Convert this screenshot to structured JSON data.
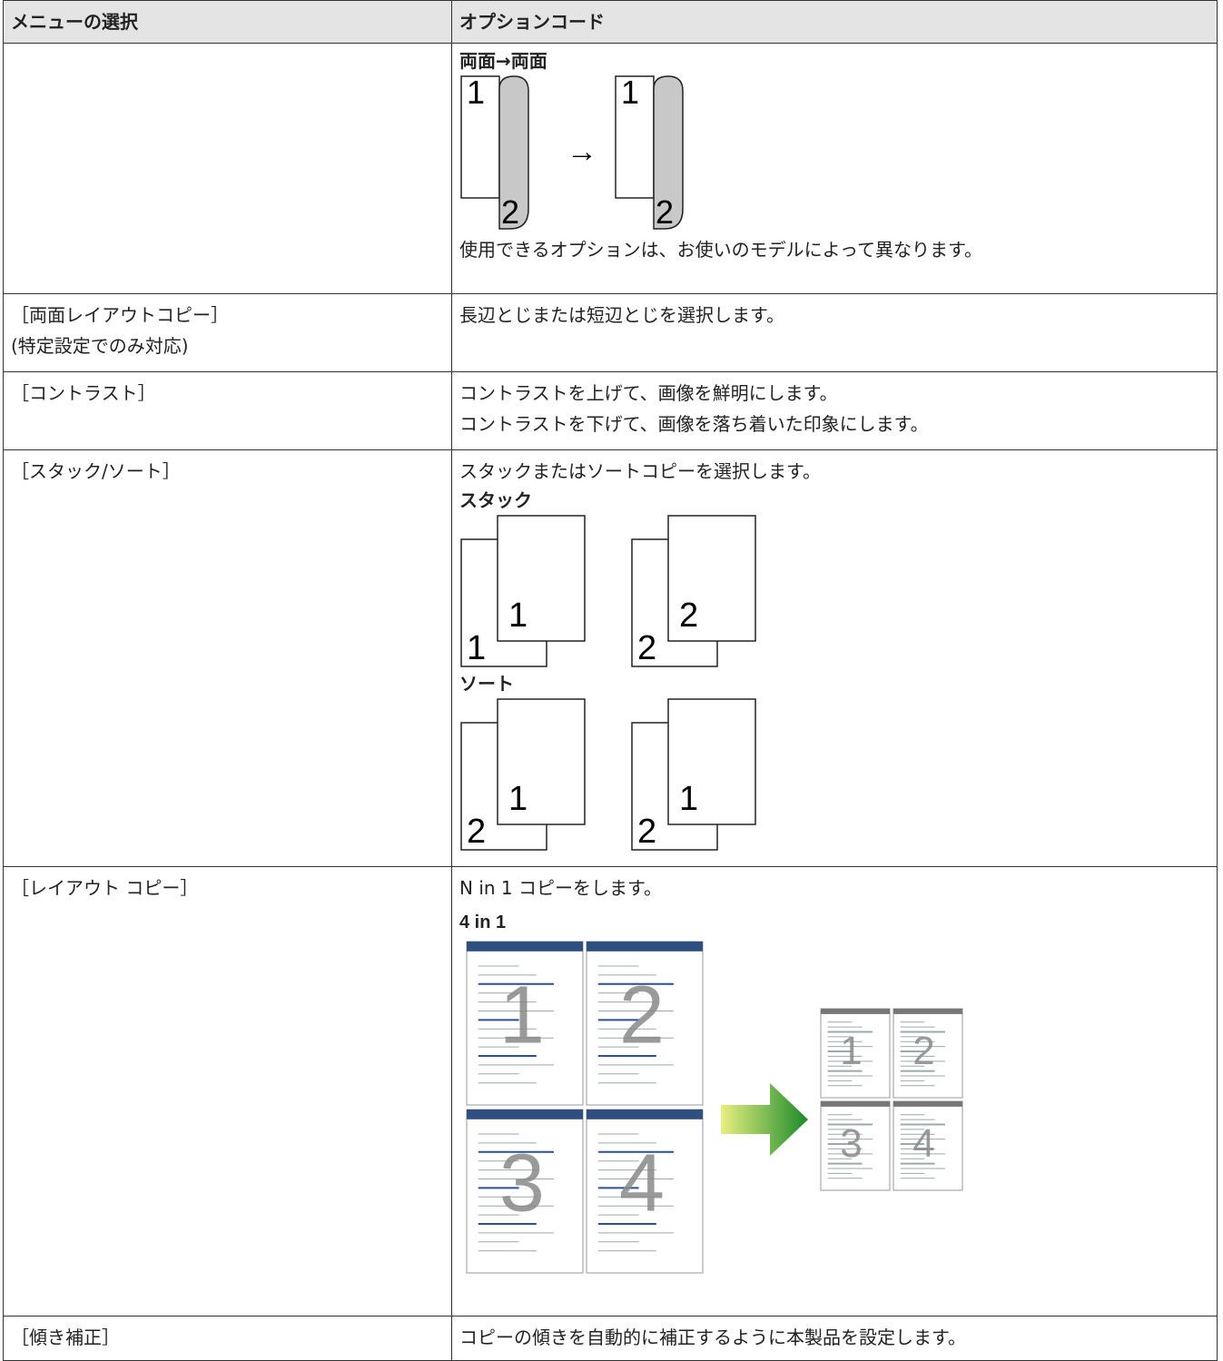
{
  "table": {
    "headers": [
      "メニューの選択",
      "オプションコード"
    ],
    "rows": [
      {
        "option": {
          "heading": "両面→両面",
          "duplex": {
            "pages": [
              {
                "front": "1",
                "back": "2"
              },
              {
                "front": "1",
                "back": "2"
              }
            ],
            "arrow": "→"
          },
          "note": "使用できるオプションは、お使いのモデルによって異なります。"
        }
      },
      {
        "menu": [
          "［両面レイアウトコピー］",
          "(特定設定でのみ対応)"
        ],
        "option": {
          "lines": [
            "長辺とじまたは短辺とじを選択します。"
          ]
        }
      },
      {
        "menu": [
          "［コントラスト］"
        ],
        "option": {
          "lines": [
            "コントラストを上げて、画像を鮮明にします。",
            "コントラストを下げて、画像を落ち着いた印象にします。"
          ]
        }
      },
      {
        "menu": [
          "［スタック/ソート］"
        ],
        "option": {
          "lines": [
            "スタックまたはソートコピーを選択します。"
          ],
          "sections": [
            {
              "heading": "スタック",
              "stacks": [
                {
                  "back": "1",
                  "front": "1"
                },
                {
                  "back": "2",
                  "front": "2"
                }
              ]
            },
            {
              "heading": "ソート",
              "stacks": [
                {
                  "back": "2",
                  "front": "1"
                },
                {
                  "back": "2",
                  "front": "1"
                }
              ]
            }
          ]
        }
      },
      {
        "menu": [
          "［レイアウト コピー］"
        ],
        "option": {
          "lines": [
            "N in 1 コピーをします。"
          ],
          "heading": "4 in 1",
          "pages": [
            "1",
            "2",
            "3",
            "4"
          ]
        }
      },
      {
        "menu": [
          "［傾き補正］"
        ],
        "option": {
          "lines": [
            "コピーの傾きを自動的に補正するように本製品を設定します。"
          ]
        }
      }
    ]
  }
}
